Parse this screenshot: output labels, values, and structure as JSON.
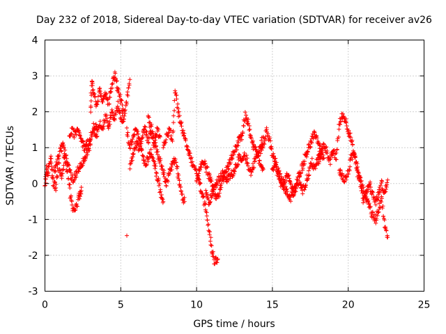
{
  "chart_data": {
    "type": "scatter",
    "title": "Day 232 of 2018, Sidereal Day-to-day VTEC variation (SDTVAR) for receiver av26",
    "xlabel": "GPS time / hours",
    "ylabel": "SDTVAR / TECUs",
    "xlim": [
      0,
      25
    ],
    "ylim": [
      -3,
      4
    ],
    "xticks": [
      0,
      5,
      10,
      15,
      20,
      25
    ],
    "yticks": [
      -3,
      -2,
      -1,
      0,
      1,
      2,
      3,
      4
    ],
    "grid": true,
    "marker": "+",
    "color": "#ff0000",
    "trace_segments": [
      [
        [
          0.0,
          -0.05
        ],
        [
          0.1,
          0.4
        ],
        [
          0.2,
          0.3
        ],
        [
          0.4,
          0.75
        ],
        [
          0.5,
          0.1
        ],
        [
          0.7,
          -0.1
        ],
        [
          0.9,
          0.5
        ],
        [
          1.1,
          0.2
        ],
        [
          1.3,
          0.8
        ],
        [
          1.5,
          0.3
        ],
        [
          1.7,
          -0.4
        ],
        [
          1.9,
          -0.8
        ],
        [
          2.1,
          -0.6
        ],
        [
          2.3,
          -0.3
        ],
        [
          2.4,
          -0.2
        ]
      ],
      [
        [
          0.6,
          0.3
        ],
        [
          0.8,
          0.6
        ],
        [
          1.0,
          0.9
        ],
        [
          1.2,
          1.1
        ],
        [
          1.4,
          0.7
        ],
        [
          1.6,
          0.4
        ],
        [
          1.8,
          0.1
        ],
        [
          2.0,
          0.2
        ],
        [
          2.2,
          0.4
        ],
        [
          2.4,
          0.55
        ],
        [
          2.6,
          0.7
        ],
        [
          2.8,
          0.9
        ],
        [
          3.0,
          1.1
        ]
      ],
      [
        [
          1.6,
          1.4
        ],
        [
          1.8,
          1.45
        ],
        [
          2.0,
          1.35
        ],
        [
          2.2,
          1.5
        ],
        [
          2.4,
          1.2
        ],
        [
          2.6,
          1.0
        ],
        [
          2.8,
          1.1
        ],
        [
          3.0,
          1.3
        ],
        [
          3.2,
          1.5
        ],
        [
          3.4,
          1.6
        ]
      ],
      [
        [
          3.0,
          2.0
        ],
        [
          3.1,
          2.9
        ],
        [
          3.2,
          2.5
        ],
        [
          3.4,
          2.1
        ],
        [
          3.6,
          2.6
        ],
        [
          3.8,
          2.3
        ],
        [
          4.0,
          2.55
        ],
        [
          4.2,
          2.2
        ],
        [
          4.4,
          2.7
        ],
        [
          4.6,
          3.05
        ],
        [
          4.8,
          2.6
        ],
        [
          5.0,
          2.3
        ],
        [
          5.2,
          1.9
        ],
        [
          5.4,
          2.3
        ],
        [
          5.6,
          2.9
        ]
      ],
      [
        [
          3.2,
          1.6
        ],
        [
          3.4,
          1.3
        ],
        [
          3.6,
          1.7
        ],
        [
          3.8,
          1.5
        ],
        [
          4.0,
          1.9
        ],
        [
          4.2,
          1.6
        ],
        [
          4.4,
          2.0
        ],
        [
          4.6,
          1.8
        ],
        [
          4.8,
          2.2
        ],
        [
          5.0,
          1.75
        ],
        [
          5.2,
          1.8
        ]
      ],
      [
        [
          5.4,
          1.5
        ],
        [
          5.6,
          1.0
        ],
        [
          5.8,
          1.3
        ],
        [
          6.0,
          1.5
        ],
        [
          6.2,
          1.2
        ],
        [
          6.4,
          0.9
        ],
        [
          6.6,
          0.5
        ],
        [
          6.8,
          0.7
        ],
        [
          7.0,
          0.9
        ],
        [
          7.2,
          0.6
        ],
        [
          7.4,
          0.2
        ],
        [
          7.6,
          -0.2
        ],
        [
          7.8,
          -0.5
        ]
      ],
      [
        [
          5.6,
          0.5
        ],
        [
          5.8,
          0.8
        ],
        [
          6.0,
          1.1
        ],
        [
          6.2,
          1.0
        ],
        [
          6.4,
          1.3
        ],
        [
          6.6,
          1.5
        ],
        [
          6.8,
          1.2
        ],
        [
          7.0,
          1.4
        ],
        [
          7.2,
          1.1
        ],
        [
          7.4,
          1.5
        ],
        [
          7.6,
          1.3
        ]
      ],
      [
        [
          6.8,
          1.8
        ],
        [
          7.0,
          1.6
        ],
        [
          7.2,
          1.2
        ],
        [
          7.4,
          0.9
        ],
        [
          7.6,
          0.6
        ],
        [
          7.8,
          0.3
        ],
        [
          8.0,
          0.0
        ],
        [
          8.2,
          0.3
        ],
        [
          8.4,
          0.5
        ],
        [
          8.6,
          0.7
        ],
        [
          8.8,
          0.2
        ],
        [
          9.0,
          -0.3
        ],
        [
          9.2,
          -0.5
        ]
      ],
      [
        [
          7.8,
          1.0
        ],
        [
          8.0,
          1.3
        ],
        [
          8.2,
          1.5
        ],
        [
          8.4,
          1.2
        ],
        [
          8.6,
          2.6
        ],
        [
          8.8,
          2.0
        ],
        [
          9.0,
          1.6
        ],
        [
          9.2,
          1.3
        ],
        [
          9.4,
          1.0
        ],
        [
          9.6,
          0.7
        ],
        [
          9.8,
          0.5
        ],
        [
          10.0,
          0.3
        ],
        [
          10.2,
          0.0
        ],
        [
          10.4,
          -0.3
        ],
        [
          10.6,
          -0.7
        ],
        [
          10.8,
          -1.2
        ],
        [
          11.0,
          -1.8
        ],
        [
          11.2,
          -2.2
        ],
        [
          11.4,
          -2.1
        ]
      ],
      [
        [
          10.0,
          0.1
        ],
        [
          10.2,
          0.4
        ],
        [
          10.4,
          0.6
        ],
        [
          10.6,
          0.5
        ],
        [
          10.8,
          0.2
        ],
        [
          11.0,
          0.0
        ],
        [
          11.2,
          -0.3
        ],
        [
          11.4,
          -0.4
        ],
        [
          11.6,
          -0.1
        ],
        [
          11.8,
          0.2
        ],
        [
          12.0,
          0.4
        ],
        [
          12.2,
          0.6
        ],
        [
          12.4,
          0.8
        ],
        [
          12.6,
          1.0
        ],
        [
          12.8,
          1.2
        ],
        [
          13.0,
          1.3
        ],
        [
          13.2,
          1.9
        ],
        [
          13.4,
          1.7
        ],
        [
          13.6,
          1.2
        ],
        [
          13.8,
          1.0
        ],
        [
          14.0,
          0.8
        ],
        [
          14.2,
          0.6
        ],
        [
          14.4,
          0.4
        ]
      ],
      [
        [
          10.6,
          -0.2
        ],
        [
          10.8,
          -0.5
        ],
        [
          11.0,
          -0.3
        ],
        [
          11.2,
          -0.1
        ],
        [
          11.4,
          0.1
        ],
        [
          11.6,
          0.2
        ],
        [
          11.8,
          0.3
        ],
        [
          12.0,
          0.1
        ],
        [
          12.2,
          0.2
        ],
        [
          12.4,
          0.3
        ],
        [
          12.6,
          0.5
        ],
        [
          12.8,
          0.7
        ],
        [
          13.0,
          0.6
        ],
        [
          13.2,
          0.8
        ],
        [
          13.4,
          0.5
        ],
        [
          13.6,
          0.3
        ],
        [
          13.8,
          0.6
        ],
        [
          14.0,
          0.8
        ],
        [
          14.2,
          1.0
        ],
        [
          14.4,
          1.3
        ]
      ],
      [
        [
          14.2,
          0.9
        ],
        [
          14.4,
          1.1
        ],
        [
          14.6,
          1.5
        ],
        [
          14.8,
          1.2
        ],
        [
          15.0,
          0.8
        ],
        [
          15.2,
          0.6
        ],
        [
          15.4,
          0.3
        ],
        [
          15.6,
          0.1
        ],
        [
          15.8,
          -0.1
        ],
        [
          16.0,
          -0.3
        ],
        [
          16.2,
          -0.4
        ],
        [
          16.4,
          -0.2
        ],
        [
          16.6,
          0.0
        ],
        [
          16.8,
          0.3
        ],
        [
          17.0,
          0.5
        ],
        [
          17.2,
          0.8
        ],
        [
          17.4,
          1.0
        ],
        [
          17.6,
          1.2
        ],
        [
          17.8,
          1.4
        ],
        [
          18.0,
          1.2
        ],
        [
          18.2,
          0.9
        ],
        [
          18.4,
          0.7
        ]
      ],
      [
        [
          15.0,
          0.3
        ],
        [
          15.2,
          0.5
        ],
        [
          15.4,
          0.2
        ],
        [
          15.6,
          -0.1
        ],
        [
          15.8,
          0.1
        ],
        [
          16.0,
          0.2
        ],
        [
          16.2,
          0.0
        ],
        [
          16.4,
          -0.3
        ],
        [
          16.6,
          -0.1
        ],
        [
          16.8,
          0.1
        ],
        [
          17.0,
          -0.2
        ],
        [
          17.2,
          0.0
        ],
        [
          17.4,
          0.3
        ],
        [
          17.6,
          0.6
        ],
        [
          17.8,
          0.4
        ],
        [
          18.0,
          0.7
        ],
        [
          18.2,
          0.9
        ]
      ],
      [
        [
          18.0,
          0.6
        ],
        [
          18.2,
          0.8
        ],
        [
          18.4,
          1.1
        ],
        [
          18.6,
          0.9
        ],
        [
          18.8,
          0.6
        ],
        [
          19.0,
          0.9
        ],
        [
          19.2,
          0.7
        ],
        [
          19.4,
          1.6
        ],
        [
          19.6,
          1.9
        ],
        [
          19.8,
          1.8
        ],
        [
          20.0,
          1.5
        ],
        [
          20.2,
          1.2
        ],
        [
          20.4,
          0.8
        ],
        [
          20.6,
          0.3
        ],
        [
          20.8,
          0.1
        ],
        [
          21.0,
          -0.2
        ],
        [
          21.2,
          -0.4
        ],
        [
          21.4,
          -0.6
        ],
        [
          21.6,
          -0.9
        ],
        [
          21.8,
          -1.0
        ],
        [
          22.0,
          -0.7
        ],
        [
          22.2,
          -0.4
        ],
        [
          22.4,
          -1.2
        ],
        [
          22.6,
          -1.5
        ]
      ],
      [
        [
          19.4,
          0.4
        ],
        [
          19.6,
          0.2
        ],
        [
          19.8,
          0.1
        ],
        [
          20.0,
          0.3
        ],
        [
          20.2,
          0.7
        ],
        [
          20.4,
          0.9
        ],
        [
          20.6,
          0.5
        ],
        [
          20.8,
          0.0
        ],
        [
          21.0,
          -0.5
        ],
        [
          21.2,
          -0.2
        ],
        [
          21.4,
          0.0
        ],
        [
          21.6,
          -0.3
        ],
        [
          21.8,
          -0.5
        ],
        [
          22.0,
          -0.3
        ],
        [
          22.2,
          0.0
        ],
        [
          22.4,
          -0.3
        ],
        [
          22.6,
          0.1
        ]
      ]
    ],
    "isolated_points": [
      [
        5.4,
        -1.45
      ]
    ]
  }
}
